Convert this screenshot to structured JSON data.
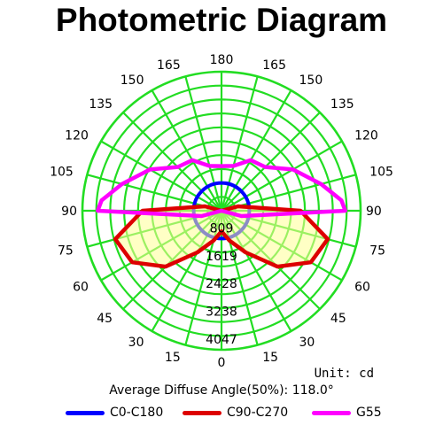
{
  "title": "Photometric Diagram",
  "unit_label": "Unit: cd",
  "average_diffuse_angle": "Average Diffuse Angle(50%): 118.0°",
  "chart_data": {
    "type": "polar",
    "title": "Photometric Diagram",
    "angle_labels": [
      "180",
      "165",
      "150",
      "135",
      "120",
      "105",
      "90",
      "75",
      "60",
      "45",
      "30",
      "15",
      "0"
    ],
    "radial_tick_labels": [
      "809",
      "1619",
      "2428",
      "3238",
      "4047"
    ],
    "radial_max": 4047,
    "unit": "Unit: cd",
    "grid": true,
    "grid_color": "#22dd22",
    "legend_position": "bottom",
    "series": [
      {
        "name": "C0-C180",
        "color": "#0000ff",
        "angles": [
          0,
          15,
          30,
          45,
          60,
          75,
          90,
          105,
          120,
          135,
          150,
          165,
          180
        ],
        "values": [
          810,
          810,
          810,
          810,
          810,
          810,
          810,
          810,
          810,
          810,
          810,
          810,
          810
        ]
      },
      {
        "name": "C90-C270",
        "color": "#dd0000",
        "angles": [
          0,
          15,
          30,
          45,
          60,
          75,
          90,
          105,
          120,
          135,
          150,
          165,
          180
        ],
        "values": [
          600,
          900,
          1400,
          2300,
          3000,
          3200,
          2300,
          500,
          0,
          0,
          0,
          0,
          0
        ]
      },
      {
        "name": "G55",
        "color": "#ff00ff",
        "angles": [
          0,
          15,
          30,
          45,
          60,
          75,
          90,
          95,
          105,
          120,
          135,
          150,
          165,
          180
        ],
        "values": [
          0,
          0,
          0,
          0,
          0,
          600,
          3600,
          3500,
          3000,
          2400,
          1800,
          1700,
          1350,
          1300
        ]
      }
    ]
  }
}
